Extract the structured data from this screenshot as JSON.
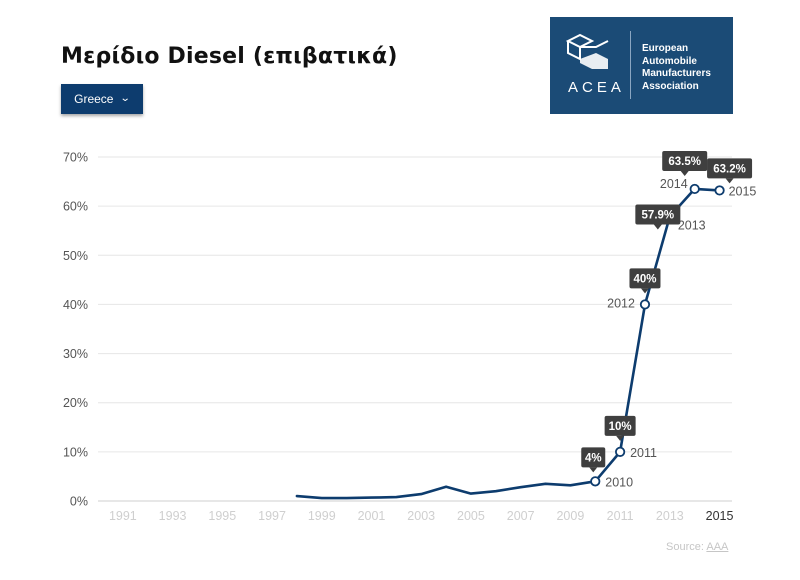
{
  "header": {
    "title": "Μερίδιο Diesel (επιβατικά)",
    "country_selector": "Greece"
  },
  "logo": {
    "acronym": "ACEA",
    "name_lines": [
      "European",
      "Automobile",
      "Manufacturers",
      "Association"
    ]
  },
  "footer": {
    "source_prefix": "Source:",
    "source_link": "AAA"
  },
  "colors": {
    "line": "#0d3c6e",
    "button": "#0d3c6e",
    "logo_bg": "#1b4b76",
    "label_bg": "#3f3f3f",
    "grid": "#e6e6e6"
  },
  "chart_data": {
    "type": "line",
    "x": [
      1998,
      1999,
      2000,
      2001,
      2002,
      2003,
      2004,
      2005,
      2006,
      2007,
      2008,
      2009,
      2010,
      2011,
      2012,
      2013,
      2014,
      2015
    ],
    "series": [
      {
        "values": [
          1.0,
          0.6,
          0.6,
          0.7,
          0.8,
          1.4,
          2.9,
          1.5,
          2.0,
          2.8,
          3.5,
          3.2,
          4,
          10,
          40,
          57.9,
          63.5,
          63.2
        ]
      }
    ],
    "xlim": [
      1990,
      2015.5
    ],
    "ylim": [
      0,
      70
    ],
    "y_ticks": [
      "0%",
      "10%",
      "20%",
      "30%",
      "40%",
      "50%",
      "60%",
      "70%"
    ],
    "x_ticks": [
      "1991",
      "1993",
      "1995",
      "1997",
      "1999",
      "2001",
      "2003",
      "2005",
      "2007",
      "2009",
      "2011",
      "2013",
      "2015"
    ],
    "grid": true,
    "annotations": [
      {
        "x": 2010,
        "y": 4,
        "value_label": "4%",
        "year_label": "2010"
      },
      {
        "x": 2011,
        "y": 10,
        "value_label": "10%",
        "year_label": "2011"
      },
      {
        "x": 2012,
        "y": 40,
        "value_label": "40%",
        "year_label": "2012"
      },
      {
        "x": 2013,
        "y": 57.9,
        "value_label": "57.9%",
        "year_label": "2013"
      },
      {
        "x": 2014,
        "y": 63.5,
        "value_label": "63.5%",
        "year_label": "2014"
      },
      {
        "x": 2015,
        "y": 63.2,
        "value_label": "63.2%",
        "year_label": "2015"
      }
    ]
  }
}
